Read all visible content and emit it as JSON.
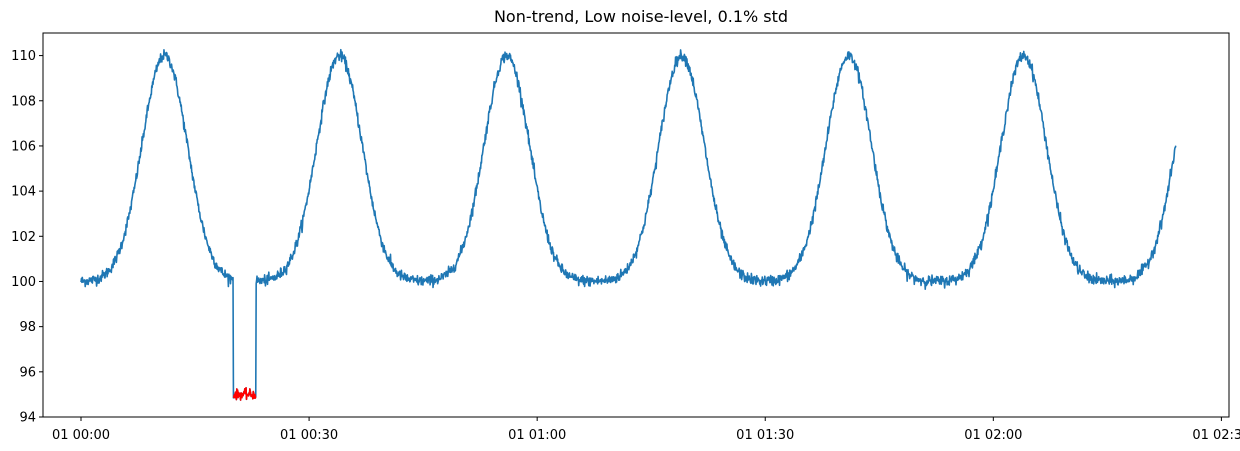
{
  "chart_data": {
    "type": "line",
    "title": "Non-trend, Low noise-level, 0.1% std",
    "xlabel": "",
    "ylabel": "",
    "x_unit": "time (hh:mm)",
    "xlim": [
      "00:-05",
      "02:31"
    ],
    "ylim": [
      94,
      111
    ],
    "x_ticks": [
      {
        "value": "00:00",
        "label": "01 00:00"
      },
      {
        "value": "00:30",
        "label": "01 00:30"
      },
      {
        "value": "01:00",
        "label": "01 01:00"
      },
      {
        "value": "01:30",
        "label": "01 01:30"
      },
      {
        "value": "02:00",
        "label": "01 02:00"
      },
      {
        "value": "02:30",
        "label": "01 02:30"
      }
    ],
    "y_ticks": [
      94,
      96,
      98,
      100,
      102,
      104,
      106,
      108,
      110
    ],
    "grid": false,
    "legend": "none",
    "series": [
      {
        "color": "#1f77b4",
        "baseline": 100,
        "peak_value": 110,
        "peak_times": [
          "00:11",
          "00:34",
          "00:56",
          "01:19",
          "01:41",
          "02:04"
        ],
        "x_start": "00:00",
        "x_end": "02:24",
        "end_value": 105.8,
        "noise_std_pct": 0.1
      },
      {
        "color": "#ff0000",
        "value": 95,
        "x_start": "00:20",
        "x_end": "00:23",
        "note_visible": false
      }
    ]
  }
}
